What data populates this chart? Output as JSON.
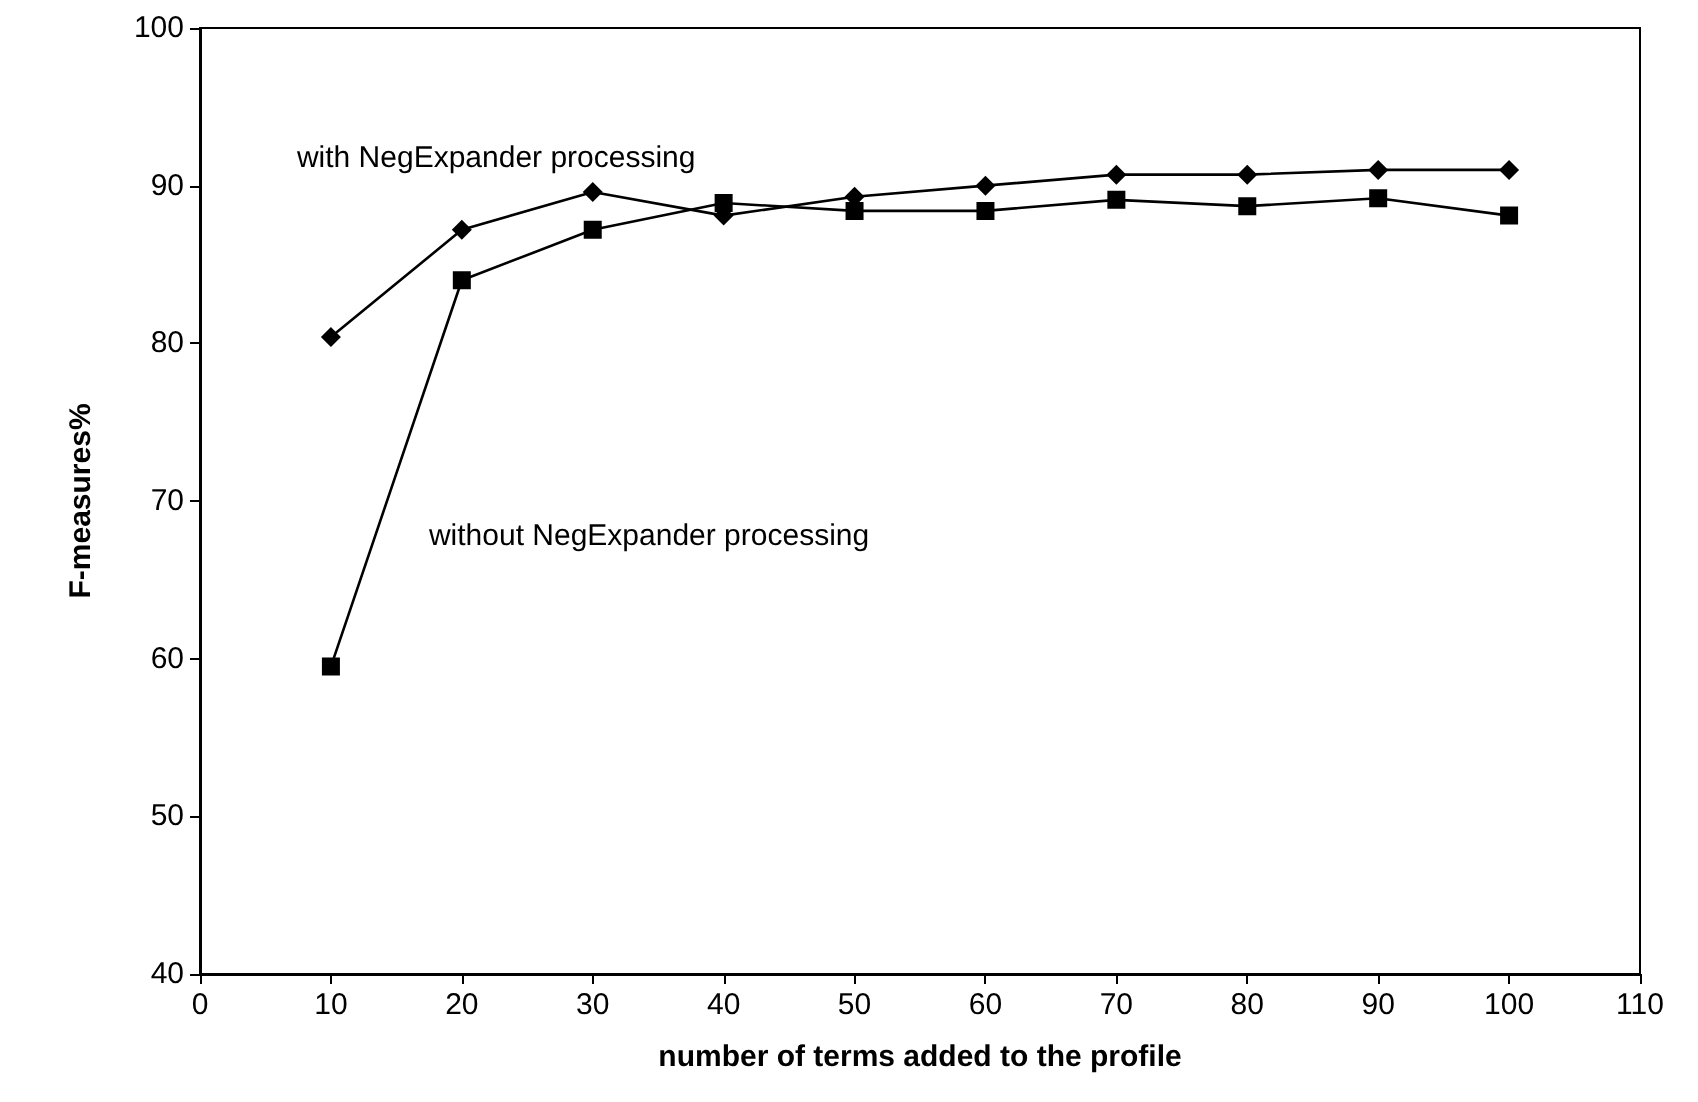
{
  "chart_data": {
    "type": "line",
    "xlabel": "number of terms added to the profile",
    "ylabel": "F-measures%",
    "x": [
      10,
      20,
      30,
      40,
      50,
      60,
      70,
      80,
      90,
      100
    ],
    "xlim": [
      0,
      110
    ],
    "xticks": [
      0,
      10,
      20,
      30,
      40,
      50,
      60,
      70,
      80,
      90,
      100,
      110
    ],
    "ylim": [
      40,
      100
    ],
    "yticks": [
      40,
      50,
      60,
      70,
      80,
      90,
      100
    ],
    "grid": false,
    "legend": false,
    "line_style": "solid",
    "series": [
      {
        "name": "with NegExpander processing",
        "color": "#000000",
        "marker": "diamond",
        "values": [
          80.4,
          87.2,
          89.6,
          88.1,
          89.3,
          90.0,
          90.7,
          90.7,
          91.0,
          91.0
        ]
      },
      {
        "name": "without NegExpander processing",
        "color": "#000000",
        "marker": "square",
        "values": [
          59.5,
          84.0,
          87.2,
          88.9,
          88.4,
          88.4,
          89.1,
          88.7,
          89.2,
          88.1
        ]
      }
    ]
  }
}
